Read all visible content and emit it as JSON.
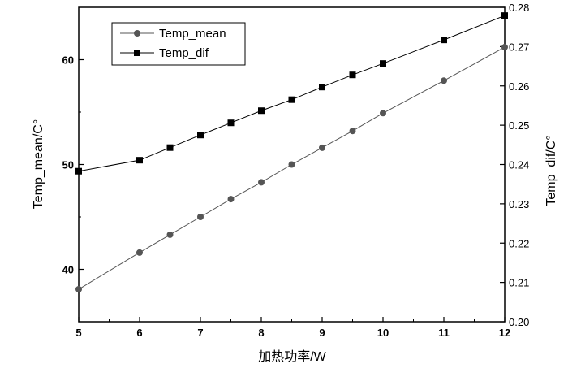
{
  "chart_data": {
    "type": "line",
    "xlabel": "加热功率/W",
    "ylabel_left": "Temp_mean/C°",
    "ylabel_right": "Temp_dif/C°",
    "xlim": [
      5,
      12
    ],
    "ylim_left": [
      35,
      65
    ],
    "ylim_right": [
      0.2,
      0.28
    ],
    "x_ticks": [
      "5",
      "6",
      "7",
      "8",
      "9",
      "10",
      "11",
      "12"
    ],
    "y_left_ticks": [
      "40",
      "50",
      "60"
    ],
    "y_right_ticks": [
      "0.20",
      "0.21",
      "0.22",
      "0.23",
      "0.24",
      "0.25",
      "0.26",
      "0.27",
      "0.28"
    ],
    "legend_position": "top-left",
    "series": [
      {
        "name": "Temp_mean",
        "axis": "left",
        "marker": "circle",
        "color": "#555555",
        "x": [
          5,
          6,
          6.5,
          7,
          7.5,
          8,
          8.5,
          9,
          9.5,
          10,
          11,
          12
        ],
        "y": [
          38.1,
          41.6,
          43.3,
          45.0,
          46.7,
          48.3,
          50.0,
          51.6,
          53.2,
          54.9,
          58.0,
          61.2
        ]
      },
      {
        "name": "Temp_dif",
        "axis": "right",
        "marker": "square",
        "color": "#000000",
        "x": [
          5,
          6,
          6.5,
          7,
          7.5,
          8,
          8.5,
          9,
          9.5,
          10,
          11,
          12
        ],
        "y": [
          0.2383,
          0.2411,
          0.2443,
          0.2475,
          0.2506,
          0.2537,
          0.2565,
          0.2597,
          0.2628,
          0.2657,
          0.2717,
          0.2779
        ]
      }
    ]
  }
}
